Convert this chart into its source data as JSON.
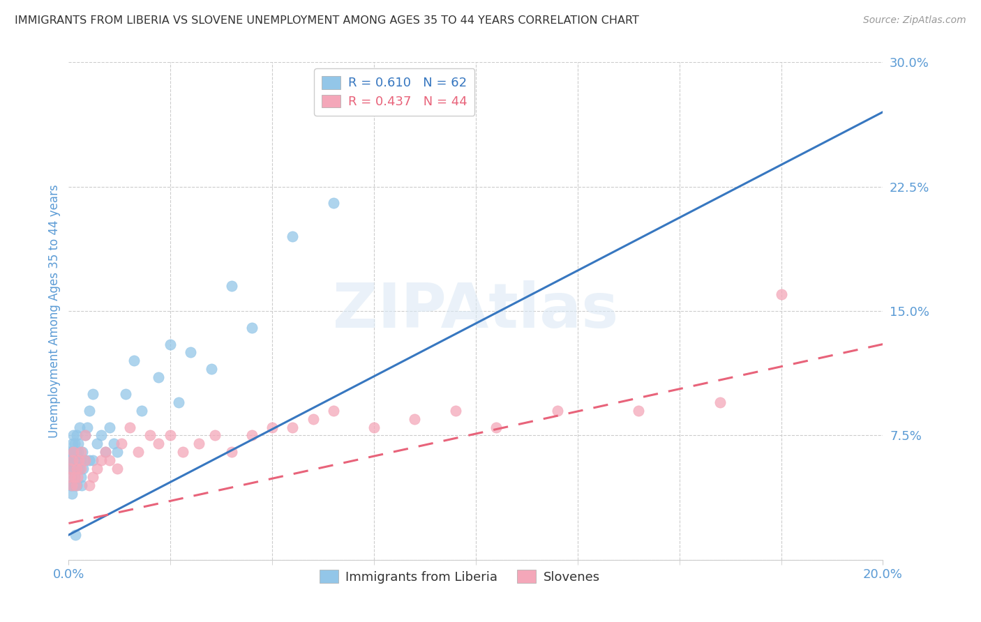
{
  "title": "IMMIGRANTS FROM LIBERIA VS SLOVENE UNEMPLOYMENT AMONG AGES 35 TO 44 YEARS CORRELATION CHART",
  "source": "Source: ZipAtlas.com",
  "ylabel": "Unemployment Among Ages 35 to 44 years",
  "xlim": [
    0.0,
    0.2
  ],
  "ylim": [
    0.0,
    0.3
  ],
  "yticks": [
    0.0,
    0.075,
    0.15,
    0.225,
    0.3
  ],
  "yticklabels": [
    "",
    "7.5%",
    "15.0%",
    "22.5%",
    "30.0%"
  ],
  "xtick_major": [
    0.0,
    0.2
  ],
  "xticklabels": [
    "0.0%",
    "20.0%"
  ],
  "xtick_minor": [
    0.0,
    0.025,
    0.05,
    0.075,
    0.1,
    0.125,
    0.15,
    0.175,
    0.2
  ],
  "watermark": "ZIPAtlas",
  "blue_color": "#93C6E8",
  "pink_color": "#F4A7B9",
  "blue_line_color": "#3777C0",
  "pink_line_color": "#E8637A",
  "legend_blue_label": "R = 0.610   N = 62",
  "legend_pink_label": "R = 0.437   N = 44",
  "legend_blue_text_color": "#3777C0",
  "legend_pink_text_color": "#E8637A",
  "blue_scatter_x": [
    0.0002,
    0.0003,
    0.0004,
    0.0005,
    0.0006,
    0.0007,
    0.0008,
    0.0008,
    0.0009,
    0.001,
    0.001,
    0.001,
    0.0012,
    0.0012,
    0.0013,
    0.0013,
    0.0014,
    0.0014,
    0.0015,
    0.0015,
    0.0016,
    0.0017,
    0.0018,
    0.002,
    0.002,
    0.002,
    0.0022,
    0.0023,
    0.0024,
    0.0025,
    0.0026,
    0.0027,
    0.003,
    0.003,
    0.0032,
    0.0033,
    0.0035,
    0.004,
    0.004,
    0.0045,
    0.005,
    0.005,
    0.006,
    0.006,
    0.007,
    0.008,
    0.009,
    0.01,
    0.011,
    0.012,
    0.014,
    0.016,
    0.018,
    0.022,
    0.025,
    0.027,
    0.03,
    0.035,
    0.04,
    0.045,
    0.055,
    0.065
  ],
  "blue_scatter_y": [
    0.055,
    0.06,
    0.045,
    0.065,
    0.055,
    0.05,
    0.06,
    0.04,
    0.065,
    0.058,
    0.07,
    0.045,
    0.06,
    0.075,
    0.055,
    0.065,
    0.05,
    0.045,
    0.06,
    0.07,
    0.055,
    0.015,
    0.065,
    0.06,
    0.075,
    0.045,
    0.055,
    0.065,
    0.07,
    0.06,
    0.08,
    0.055,
    0.06,
    0.05,
    0.045,
    0.065,
    0.055,
    0.075,
    0.06,
    0.08,
    0.06,
    0.09,
    0.06,
    0.1,
    0.07,
    0.075,
    0.065,
    0.08,
    0.07,
    0.065,
    0.1,
    0.12,
    0.09,
    0.11,
    0.13,
    0.095,
    0.125,
    0.115,
    0.165,
    0.14,
    0.195,
    0.215
  ],
  "pink_scatter_x": [
    0.0003,
    0.0005,
    0.0007,
    0.001,
    0.0012,
    0.0015,
    0.0018,
    0.002,
    0.0022,
    0.0025,
    0.003,
    0.003,
    0.004,
    0.004,
    0.005,
    0.006,
    0.007,
    0.008,
    0.009,
    0.01,
    0.012,
    0.013,
    0.015,
    0.017,
    0.02,
    0.022,
    0.025,
    0.028,
    0.032,
    0.036,
    0.04,
    0.045,
    0.05,
    0.055,
    0.06,
    0.065,
    0.075,
    0.085,
    0.095,
    0.105,
    0.12,
    0.14,
    0.16,
    0.175
  ],
  "pink_scatter_y": [
    0.05,
    0.055,
    0.045,
    0.06,
    0.065,
    0.05,
    0.045,
    0.055,
    0.05,
    0.06,
    0.065,
    0.055,
    0.075,
    0.06,
    0.045,
    0.05,
    0.055,
    0.06,
    0.065,
    0.06,
    0.055,
    0.07,
    0.08,
    0.065,
    0.075,
    0.07,
    0.075,
    0.065,
    0.07,
    0.075,
    0.065,
    0.075,
    0.08,
    0.08,
    0.085,
    0.09,
    0.08,
    0.085,
    0.09,
    0.08,
    0.09,
    0.09,
    0.095,
    0.16
  ],
  "blue_trendline_x": [
    0.0,
    0.2
  ],
  "blue_trendline_y": [
    0.015,
    0.27
  ],
  "pink_trendline_x": [
    0.0,
    0.2
  ],
  "pink_trendline_y": [
    0.022,
    0.13
  ],
  "grid_color": "#cccccc",
  "background_color": "#ffffff",
  "title_color": "#333333",
  "axis_label_color": "#5b9bd5",
  "tick_color": "#5b9bd5"
}
